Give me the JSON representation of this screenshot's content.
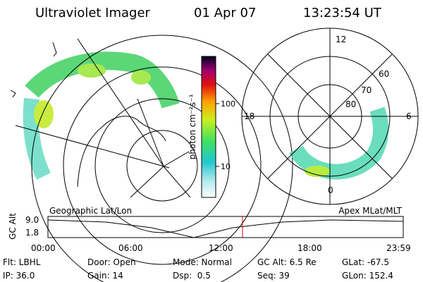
{
  "header": {
    "title": "Ultraviolet Imager",
    "date": "01 Apr 07",
    "time": "13:23:54 UT"
  },
  "colorbar": {
    "label": "photon cm⁻²s⁻¹",
    "ticks": [
      "100",
      "10"
    ]
  },
  "polar_plot": {
    "mlt_labels": [
      "12",
      "6",
      "0",
      "18"
    ],
    "lat_labels": [
      "60",
      "70",
      "80"
    ]
  },
  "timeline": {
    "left_label": "Geographic Lat/Lon",
    "right_label": "Apex MLat/MLT",
    "y_axis_label": "GC Alt",
    "y_ticks": [
      "9.0",
      "1.8"
    ],
    "time_ticks": [
      "00:00",
      "06:00",
      "12:00",
      "18:00",
      "23:59"
    ]
  },
  "status": {
    "rows": [
      [
        "Flt: LBHL",
        "Door: Open",
        "Mode: Normal",
        "GC Alt: 6.5 Re",
        "GLat: -67.5"
      ],
      [
        "IP: 36.0",
        "Gain: 14",
        "Dsp:  0.5",
        "Seq: 39",
        "GLon: 152.4"
      ]
    ]
  }
}
